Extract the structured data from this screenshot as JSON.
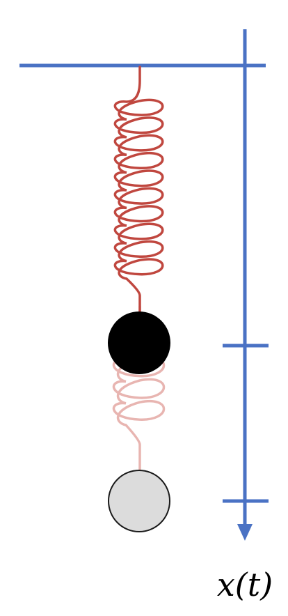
{
  "diagram": {
    "axis_label": "x(t)",
    "colors": {
      "axis": "#4A72C4",
      "spring": "#C0473F",
      "spring_faded": "#E8B5B1",
      "mass_current": "#000000",
      "mass_faded": "#DCDCDC",
      "mass_faded_outline": "#1A1A1A",
      "background": "#FFFFFF"
    }
  }
}
